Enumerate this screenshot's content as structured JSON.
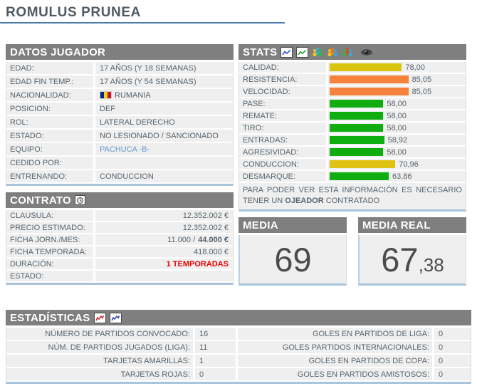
{
  "page": {
    "title": "ROMULUS PRUNEA"
  },
  "datos": {
    "title": "DATOS JUGADOR",
    "rows": [
      {
        "label": "EDAD:",
        "value": "17 AÑOS (Y 18 SEMANAS)"
      },
      {
        "label": "EDAD FIN TEMP.:",
        "value": "17 AÑOS (Y 54 SEMANAS)"
      },
      {
        "label": "NACIONALIDAD:",
        "value": "RUMANIA"
      },
      {
        "label": "POSICION:",
        "value": "DEF"
      },
      {
        "label": "ROL:",
        "value": "LATERAL DERECHO"
      },
      {
        "label": "ESTADO:",
        "value": "NO LESIONADO / SANCIONADO"
      },
      {
        "label": "EQUIPO:",
        "value": "PACHUCA -B-"
      },
      {
        "label": "CEDIDO POR:",
        "value": ""
      },
      {
        "label": "ENTRENANDO:",
        "value": "CONDUCCION"
      }
    ]
  },
  "contrato": {
    "title": "CONTRATO",
    "history_icon": "contract-history-clock",
    "rows": [
      {
        "label": "CLAUSULA:",
        "value": "12.352.002 €"
      },
      {
        "label": "PRECIO ESTIMADO:",
        "value": "12.352.002 €"
      },
      {
        "label": "FICHA JORN./MES:",
        "value_prefix": "11.000 / ",
        "value_bold": "44.000 €"
      },
      {
        "label": "FICHA TEMPORADA:",
        "value": "418.000 €"
      },
      {
        "label": "DURACIÓN:",
        "value": "1 TEMPORADAS"
      },
      {
        "label": "ESTADO:",
        "value": ""
      }
    ]
  },
  "stats": {
    "title": "STATS",
    "icons": [
      "blue-chart",
      "green-chart",
      "players-group-1",
      "players-group-2",
      "players-group-3",
      "eye"
    ],
    "rows": [
      {
        "label": "CALIDAD:",
        "display": "78,00",
        "value": 78.0,
        "color": "#d9c40e"
      },
      {
        "label": "RESISTENCIA:",
        "display": "85,05",
        "value": 85.05,
        "color": "#f6813a"
      },
      {
        "label": "VELOCIDAD:",
        "display": "85,05",
        "value": 85.05,
        "color": "#f6813a"
      },
      {
        "label": "PASE:",
        "display": "58,00",
        "value": 58.0,
        "color": "#10ad10"
      },
      {
        "label": "REMATE:",
        "display": "58,00",
        "value": 58.0,
        "color": "#10ad10"
      },
      {
        "label": "TIRO:",
        "display": "58,00",
        "value": 58.0,
        "color": "#10ad10"
      },
      {
        "label": "ENTRADAS:",
        "display": "58,92",
        "value": 58.92,
        "color": "#10ad10"
      },
      {
        "label": "AGRESIVIDAD:",
        "display": "58,00",
        "value": 58.0,
        "color": "#10ad10"
      },
      {
        "label": "CONDUCCION:",
        "display": "70,96",
        "value": 70.96,
        "color": "#e0c312"
      },
      {
        "label": "DESMARQUE:",
        "display": "63,86",
        "value": 63.86,
        "color": "#10ad10"
      }
    ],
    "note_pre": "PARA PODER VER ESTA INFORMACIÓN ES NECESARIO TENER UN ",
    "note_bold": "OJEADOR",
    "note_post": " CONTRATADO"
  },
  "media": {
    "title": "MEDIA",
    "value": "69"
  },
  "media_real": {
    "title": "MEDIA REAL",
    "value_int": "67",
    "value_dec": ",38"
  },
  "estadisticas": {
    "title": "ESTADÍSTICAS",
    "icons": [
      "red-chart",
      "darkblue-chart"
    ],
    "left_rows": [
      {
        "label": "NÚMERO DE PARTIDOS CONVOCADO:",
        "value": "16"
      },
      {
        "label": "NÚM. DE PARTIDOS JUGADOS (LIGA):",
        "value": "11"
      },
      {
        "label": "TARJETAS AMARILLAS:",
        "value": "1"
      },
      {
        "label": "TARJETAS ROJAS:",
        "value": "0"
      }
    ],
    "right_rows": [
      {
        "label": "GOLES EN PARTIDOS DE LIGA:",
        "value": "0"
      },
      {
        "label": "GOLES PARTIDOS INTERNACIONALES:",
        "value": "0"
      },
      {
        "label": "GOLES EN PARTIDOS DE COPA:",
        "value": "0"
      },
      {
        "label": "GOLES EN PARTIDOS AMISTOSOS:",
        "value": "0"
      }
    ]
  },
  "colors": {
    "header_bg": "#7f7f7f",
    "row_bg": "#efefef",
    "label_text": "#57646e",
    "link": "#6699cc",
    "accent_red": "#e80000",
    "bar_green": "#10ad10",
    "bar_yellow": "#d9c40e",
    "bar_orange": "#f6813a",
    "panel_bottom_border": "#aac5db",
    "title_underline": "#4d7ca9",
    "flag_blue": "#002B7F",
    "flag_yellow": "#FCD116",
    "flag_red": "#CE1126"
  }
}
